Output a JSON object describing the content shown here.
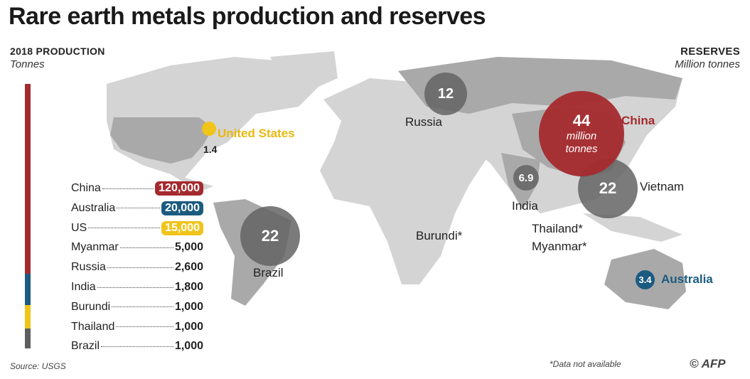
{
  "title": "Rare earth metals production and reserves",
  "production_heading": "2018 Production",
  "production_unit": "Tonnes",
  "reserves_heading": "Reserves",
  "reserves_unit": "Million tonnes",
  "source": "Source: USGS",
  "footnote": "*Data not available",
  "credit": "© AFP",
  "colors": {
    "china": "#a52a2e",
    "australia": "#1b5b80",
    "us": "#f0c419",
    "other": "#5e5e5e"
  },
  "chart_data": {
    "type": "bar",
    "title": "2018 Production (Tonnes)",
    "categories": [
      "China",
      "Australia",
      "US",
      "Myanmar",
      "Russia",
      "India",
      "Burundi",
      "Thailand",
      "Brazil"
    ],
    "values": [
      120000,
      20000,
      15000,
      5000,
      2600,
      1800,
      1000,
      1000,
      1000
    ],
    "value_labels": [
      "120,000",
      "20,000",
      "15,000",
      "5,000",
      "2,600",
      "1,800",
      "1,000",
      "1,000",
      "1,000"
    ],
    "reserves": {
      "unit": "Million tonnes",
      "items": [
        {
          "country": "China",
          "value": "44",
          "extra": "million tonnes"
        },
        {
          "country": "Vietnam",
          "value": "22"
        },
        {
          "country": "Brazil",
          "value": "22"
        },
        {
          "country": "Russia",
          "value": "12"
        },
        {
          "country": "India",
          "value": "6.9"
        },
        {
          "country": "Australia",
          "value": "3.4"
        },
        {
          "country": "United States",
          "value": "1.4"
        },
        {
          "country": "Burundi*"
        },
        {
          "country": "Thailand*"
        },
        {
          "country": "Myanmar*"
        }
      ]
    }
  }
}
